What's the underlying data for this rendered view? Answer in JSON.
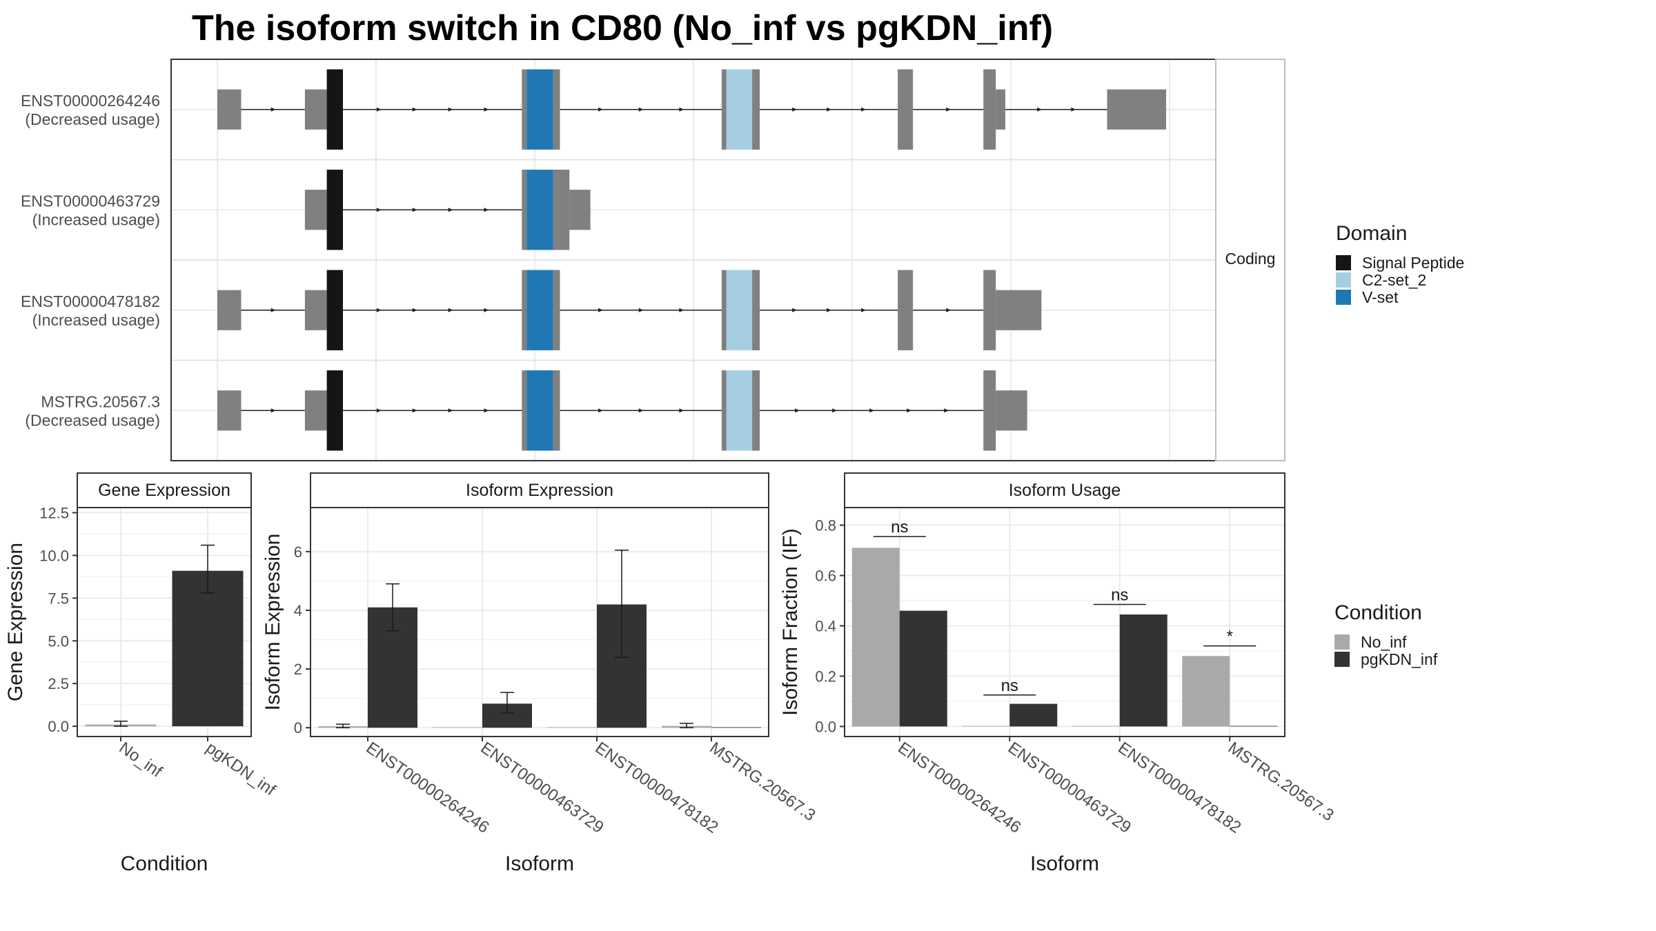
{
  "title": "The isoform switch in CD80 (No_inf vs pgKDN_inf)",
  "colors": {
    "signal_peptide": "#151515",
    "c2set": "#a6cee3",
    "vset": "#1f78b4",
    "exon": "#808080",
    "no_inf": "#a9a9a9",
    "pgkdn_inf": "#333333",
    "grid": "#ebebeb",
    "strip_bg": "#ffffff",
    "border": "#333333"
  },
  "legends": {
    "domain": {
      "title": "Domain",
      "items": [
        {
          "label": "Signal Peptide",
          "color": "#151515"
        },
        {
          "label": "C2-set_2",
          "color": "#a6cee3"
        },
        {
          "label": "V-set",
          "color": "#1f78b4"
        }
      ]
    },
    "condition": {
      "title": "Condition",
      "items": [
        {
          "label": "No_inf",
          "color": "#a9a9a9"
        },
        {
          "label": "pgKDN_inf",
          "color": "#333333"
        }
      ]
    }
  },
  "chart_data": [
    {
      "type": "gene-structure",
      "facet_label": "Coding",
      "transcripts": [
        {
          "id": "ENST00000264246",
          "usage": "(Decreased usage)",
          "blocks": [
            {
              "s": 0,
              "e": 25,
              "k": "utr"
            },
            {
              "s": 92,
              "e": 115,
              "k": "utr"
            },
            {
              "s": 115,
              "e": 132,
              "k": "sig"
            },
            {
              "s": 320,
              "e": 325,
              "k": "cds"
            },
            {
              "s": 325,
              "e": 353,
              "k": "vset"
            },
            {
              "s": 353,
              "e": 360,
              "k": "cds"
            },
            {
              "s": 530,
              "e": 535,
              "k": "cds"
            },
            {
              "s": 535,
              "e": 562,
              "k": "c2"
            },
            {
              "s": 562,
              "e": 570,
              "k": "cds"
            },
            {
              "s": 715,
              "e": 731,
              "k": "cds"
            },
            {
              "s": 805,
              "e": 818,
              "k": "cds"
            },
            {
              "s": 818,
              "e": 828,
              "k": "utr"
            },
            {
              "s": 935,
              "e": 997,
              "k": "utr"
            }
          ]
        },
        {
          "id": "ENST00000463729",
          "usage": "(Increased usage)",
          "blocks": [
            {
              "s": 92,
              "e": 115,
              "k": "utr"
            },
            {
              "s": 115,
              "e": 132,
              "k": "sig"
            },
            {
              "s": 320,
              "e": 325,
              "k": "cds"
            },
            {
              "s": 325,
              "e": 353,
              "k": "vset"
            },
            {
              "s": 353,
              "e": 370,
              "k": "cds"
            },
            {
              "s": 370,
              "e": 392,
              "k": "utr"
            }
          ]
        },
        {
          "id": "ENST00000478182",
          "usage": "(Increased usage)",
          "blocks": [
            {
              "s": 0,
              "e": 25,
              "k": "utr"
            },
            {
              "s": 92,
              "e": 115,
              "k": "utr"
            },
            {
              "s": 115,
              "e": 132,
              "k": "sig"
            },
            {
              "s": 320,
              "e": 325,
              "k": "cds"
            },
            {
              "s": 325,
              "e": 353,
              "k": "vset"
            },
            {
              "s": 353,
              "e": 360,
              "k": "cds"
            },
            {
              "s": 530,
              "e": 535,
              "k": "cds"
            },
            {
              "s": 535,
              "e": 562,
              "k": "c2"
            },
            {
              "s": 562,
              "e": 570,
              "k": "cds"
            },
            {
              "s": 715,
              "e": 731,
              "k": "cds"
            },
            {
              "s": 805,
              "e": 818,
              "k": "cds"
            },
            {
              "s": 818,
              "e": 866,
              "k": "utr"
            }
          ]
        },
        {
          "id": "MSTRG.20567.3",
          "usage": "(Decreased usage)",
          "blocks": [
            {
              "s": 0,
              "e": 25,
              "k": "utr"
            },
            {
              "s": 92,
              "e": 115,
              "k": "utr"
            },
            {
              "s": 115,
              "e": 132,
              "k": "sig"
            },
            {
              "s": 320,
              "e": 325,
              "k": "cds"
            },
            {
              "s": 325,
              "e": 353,
              "k": "vset"
            },
            {
              "s": 353,
              "e": 360,
              "k": "cds"
            },
            {
              "s": 530,
              "e": 535,
              "k": "cds"
            },
            {
              "s": 535,
              "e": 562,
              "k": "c2"
            },
            {
              "s": 562,
              "e": 570,
              "k": "cds"
            },
            {
              "s": 805,
              "e": 818,
              "k": "cds"
            },
            {
              "s": 818,
              "e": 851,
              "k": "utr"
            }
          ]
        }
      ]
    },
    {
      "type": "bar",
      "title": "Gene Expression",
      "xlabel": "Condition",
      "ylabel": "Gene Expression",
      "categories": [
        "No_inf",
        "pgKDN_inf"
      ],
      "values": [
        0.1,
        9.1
      ],
      "errors": [
        [
          0.0,
          0.3
        ],
        [
          7.8,
          10.6
        ]
      ],
      "ylim": [
        -0.6,
        12.8
      ],
      "yticks": [
        0.0,
        2.5,
        5.0,
        7.5,
        10.0,
        12.5
      ],
      "ytick_labels": [
        "0.0",
        "2.5",
        "5.0",
        "7.5",
        "10.0",
        "12.5"
      ]
    },
    {
      "type": "bar",
      "title": "Isoform Expression",
      "xlabel": "Isoform",
      "ylabel": "Isoform Expression",
      "categories": [
        "ENST00000264246",
        "ENST00000463729",
        "ENST00000478182",
        "MSTRG.20567.3"
      ],
      "series": [
        {
          "name": "No_inf",
          "values": [
            0.05,
            0.0,
            0.0,
            0.06
          ],
          "errors": [
            [
              0.0,
              0.12
            ],
            [
              0.0,
              0.0
            ],
            [
              0.0,
              0.0
            ],
            [
              0.0,
              0.15
            ]
          ]
        },
        {
          "name": "pgKDN_inf",
          "values": [
            4.1,
            0.82,
            4.2,
            0.0
          ],
          "errors": [
            [
              3.3,
              4.9
            ],
            [
              0.5,
              1.2
            ],
            [
              2.4,
              6.05
            ],
            [
              0.0,
              0.0
            ]
          ]
        }
      ],
      "ylim": [
        -0.3,
        7.5
      ],
      "yticks": [
        0,
        2,
        4,
        6
      ],
      "ytick_labels": [
        "0",
        "2",
        "4",
        "6"
      ]
    },
    {
      "type": "bar",
      "title": "Isoform Usage",
      "xlabel": "Isoform",
      "ylabel": "Isoform Fraction (IF)",
      "categories": [
        "ENST00000264246",
        "ENST00000463729",
        "ENST00000478182",
        "MSTRG.20567.3"
      ],
      "series": [
        {
          "name": "No_inf",
          "values": [
            0.71,
            0.0,
            0.0,
            0.28
          ]
        },
        {
          "name": "pgKDN_inf",
          "values": [
            0.46,
            0.09,
            0.445,
            0.0
          ]
        }
      ],
      "significance": [
        {
          "label": "ns",
          "y": 0.755
        },
        {
          "label": "ns",
          "y": 0.125
        },
        {
          "label": "ns",
          "y": 0.485
        },
        {
          "label": "*",
          "y": 0.32
        }
      ],
      "ylim": [
        -0.04,
        0.87
      ],
      "yticks": [
        0.0,
        0.2,
        0.4,
        0.6,
        0.8
      ],
      "ytick_labels": [
        "0.0",
        "0.2",
        "0.4",
        "0.6",
        "0.8"
      ]
    }
  ]
}
